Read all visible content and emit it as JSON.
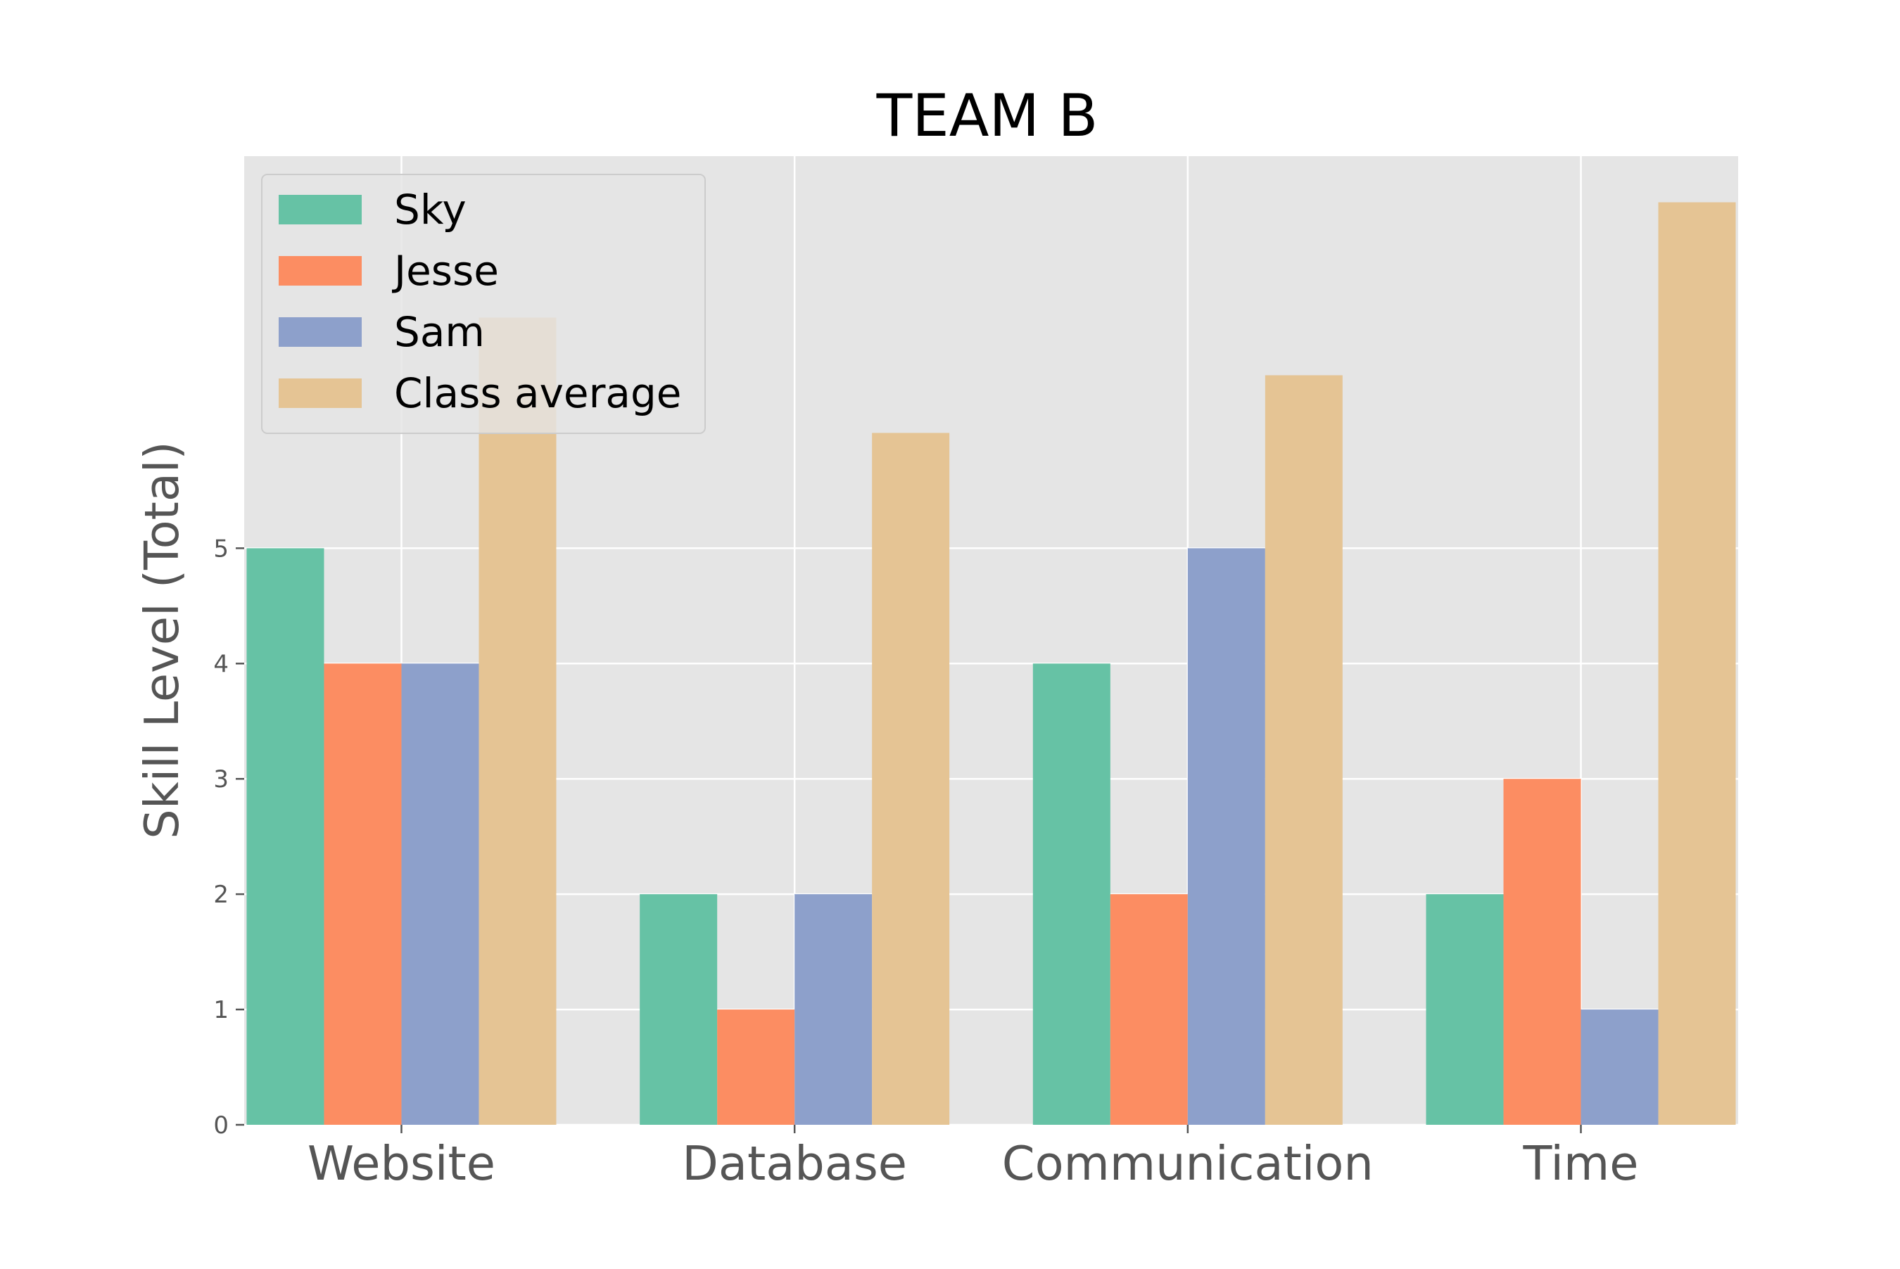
{
  "chart_data": {
    "type": "bar",
    "title": "TEAM B",
    "xlabel": "",
    "ylabel": "Skill Level (Total)",
    "categories": [
      "Website",
      "Database",
      "Communication",
      "Time"
    ],
    "series": [
      {
        "name": "Sky",
        "color": "#66c2a5",
        "values": [
          5,
          2,
          4,
          2
        ]
      },
      {
        "name": "Jesse",
        "color": "#fc8d62",
        "values": [
          4,
          1,
          2,
          3
        ]
      },
      {
        "name": "Sam",
        "color": "#8da0cb",
        "values": [
          4,
          2,
          5,
          1
        ]
      },
      {
        "name": "Class average",
        "color": "#e5c494",
        "values": [
          7,
          6,
          6.5,
          8
        ]
      }
    ],
    "yticks": [
      "0",
      "1",
      "2",
      "3",
      "4",
      "5"
    ],
    "ylim": [
      0,
      8.4
    ],
    "grid": true,
    "legend_position": "upper-left",
    "background_color": "#e5e5e5"
  }
}
